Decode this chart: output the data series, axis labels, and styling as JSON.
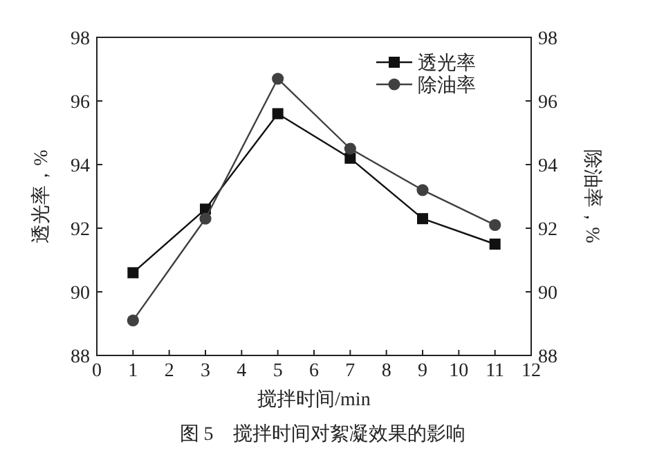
{
  "chart_data": {
    "type": "line",
    "xlabel": "搅拌时间/min",
    "ylabel": "透光率，%",
    "y2label": "除油率，%",
    "x": [
      1,
      3,
      5,
      7,
      9,
      11
    ],
    "series": [
      {
        "name": "透光率",
        "color": "#111111",
        "marker": "square",
        "values": [
          90.6,
          92.6,
          95.6,
          94.2,
          92.3,
          91.5
        ]
      },
      {
        "name": "除油率",
        "color": "#404040",
        "marker": "circle",
        "axis": "y2",
        "values": [
          89.1,
          92.3,
          96.7,
          94.5,
          93.2,
          92.1
        ]
      }
    ],
    "xlim": [
      0,
      12
    ],
    "xticks": [
      0,
      1,
      2,
      3,
      4,
      5,
      6,
      7,
      8,
      9,
      10,
      11,
      12
    ],
    "ylim": [
      88,
      98
    ],
    "yticks": [
      88,
      90,
      92,
      94,
      96,
      98
    ],
    "y2lim": [
      88,
      98
    ],
    "y2ticks": [
      88,
      90,
      92,
      94,
      96,
      98
    ],
    "legend": "top right",
    "grid": false,
    "annotations": [
      "图 5　搅拌时间对絮凝效果的影响"
    ]
  }
}
